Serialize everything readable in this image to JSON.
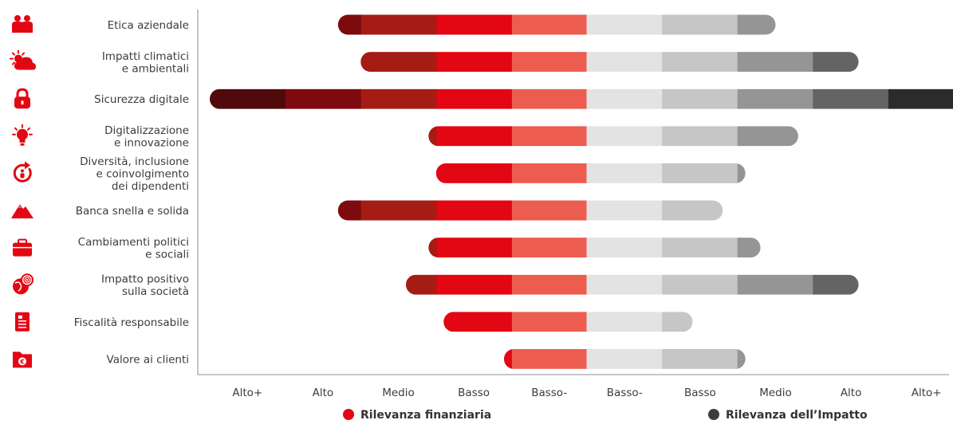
{
  "colors": {
    "financial": [
      "#500a0c",
      "#7d0a0e",
      "#a51c14",
      "#e30613",
      "#ec5c4f"
    ],
    "impact": [
      "#e3e3e3",
      "#c6c6c6",
      "#959595",
      "#646464",
      "#2b2b2b"
    ],
    "axis": "#8c8c8c",
    "text": "#3c3c3c",
    "icon": "#e30613"
  },
  "chart_data": {
    "type": "bar",
    "subtype": "diverging-stacked-horizontal",
    "scale_levels": [
      "Basso-",
      "Basso",
      "Medio",
      "Alto",
      "Alto+"
    ],
    "xlabels": [
      "Alto+",
      "Alto",
      "Medio",
      "Basso",
      "Basso-",
      "Basso-",
      "Basso",
      "Medio",
      "Alto",
      "Alto+"
    ],
    "categories": [
      {
        "label": "Etica aziendale",
        "icon": "people-icon",
        "financial": 3.3,
        "impact": 2.5
      },
      {
        "label": "Impatti climatici e ambientali",
        "icon": "sun-cloud-icon",
        "financial": 3.0,
        "impact": 3.6
      },
      {
        "label": "Sicurezza digitale",
        "icon": "lock-icon",
        "financial": 5.0,
        "impact": 5.0
      },
      {
        "label": "Digitalizzazione e innovazione",
        "icon": "lightbulb-icon",
        "financial": 2.1,
        "impact": 2.8
      },
      {
        "label": "Diversità, inclusione e coinvolgimento dei dipendenti",
        "icon": "person-arrow-icon",
        "financial": 2.0,
        "impact": 2.1
      },
      {
        "label": "Banca snella e solida",
        "icon": "mountain-icon",
        "financial": 3.3,
        "impact": 1.8
      },
      {
        "label": "Cambiamenti politici e sociali",
        "icon": "briefcase-icon",
        "financial": 2.1,
        "impact": 2.3
      },
      {
        "label": "Impatto positivo sulla società",
        "icon": "globe-fingerprint-icon",
        "financial": 2.4,
        "impact": 3.6
      },
      {
        "label": "Fiscalità responsabile",
        "icon": "document-icon",
        "financial": 1.9,
        "impact": 1.4
      },
      {
        "label": "Valore ai clienti",
        "icon": "euro-folder-icon",
        "financial": 1.1,
        "impact": 2.1
      }
    ],
    "legend": [
      {
        "label": "Rilevanza finanziaria",
        "color": "#e30613"
      },
      {
        "label": "Rilevanza dell’Impatto",
        "color": "#3c3c3c"
      }
    ],
    "legend_position": "bottom",
    "grid": false
  }
}
